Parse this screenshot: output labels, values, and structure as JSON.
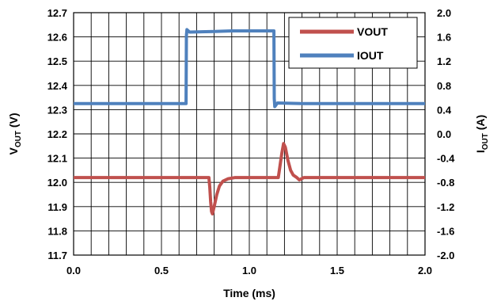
{
  "chart_data": {
    "type": "line",
    "xlabel": "Time (ms)",
    "ylabel_left": {
      "main": "V",
      "sub": "OUT",
      "unit": " (V)"
    },
    "ylabel_right": {
      "main": "I",
      "sub": "OUT",
      "unit": " (A)"
    },
    "xlim": [
      0.0,
      2.0
    ],
    "ylim_left": [
      11.7,
      12.7
    ],
    "ylim_right": [
      -2.0,
      2.0
    ],
    "x_ticks": [
      "0.0",
      "0.5",
      "1.0",
      "1.5",
      "2.0"
    ],
    "x_tick_values": [
      0.0,
      0.5,
      1.0,
      1.5,
      2.0
    ],
    "y_left_ticks": [
      "12.7",
      "12.6",
      "12.5",
      "12.4",
      "12.3",
      "12.2",
      "12.1",
      "12.0",
      "11.9",
      "11.8",
      "11.7"
    ],
    "y_left_tick_values": [
      12.7,
      12.6,
      12.5,
      12.4,
      12.3,
      12.2,
      12.1,
      12.0,
      11.9,
      11.8,
      11.7
    ],
    "y_right_ticks": [
      "2.0",
      "1.6",
      "1.2",
      "0.8",
      "0.4",
      "0.0",
      "-0.4",
      "-0.8",
      "-1.2",
      "-1.6",
      "-2.0"
    ],
    "y_right_tick_values": [
      2.0,
      1.6,
      1.2,
      0.8,
      0.4,
      0.0,
      -0.4,
      -0.8,
      -1.2,
      -1.6,
      -2.0
    ],
    "x_minor_step": 0.1,
    "grid": true,
    "legend_position": "top-right",
    "series": [
      {
        "name": "VOUT",
        "axis": "left",
        "color": "#c0504d",
        "points": [
          [
            0.0,
            12.02
          ],
          [
            0.77,
            12.02
          ],
          [
            0.775,
            11.98
          ],
          [
            0.78,
            11.92
          ],
          [
            0.785,
            11.88
          ],
          [
            0.79,
            11.87
          ],
          [
            0.8,
            11.9
          ],
          [
            0.815,
            11.95
          ],
          [
            0.83,
            11.985
          ],
          [
            0.85,
            12.005
          ],
          [
            0.88,
            12.015
          ],
          [
            0.92,
            12.02
          ],
          [
            1.165,
            12.02
          ],
          [
            1.175,
            12.07
          ],
          [
            1.185,
            12.12
          ],
          [
            1.195,
            12.16
          ],
          [
            1.205,
            12.145
          ],
          [
            1.22,
            12.09
          ],
          [
            1.235,
            12.05
          ],
          [
            1.25,
            12.03
          ],
          [
            1.27,
            12.02
          ],
          [
            1.285,
            12.01
          ],
          [
            1.31,
            12.02
          ],
          [
            2.0,
            12.02
          ]
        ]
      },
      {
        "name": "IOUT",
        "axis": "right",
        "color": "#4f81bd",
        "points": [
          [
            0.0,
            0.5
          ],
          [
            0.64,
            0.5
          ],
          [
            0.642,
            1.62
          ],
          [
            0.645,
            1.72
          ],
          [
            0.66,
            1.68
          ],
          [
            0.8,
            1.69
          ],
          [
            0.9,
            1.7
          ],
          [
            1.0,
            1.7
          ],
          [
            1.14,
            1.7
          ],
          [
            1.142,
            0.58
          ],
          [
            1.145,
            0.45
          ],
          [
            1.16,
            0.51
          ],
          [
            1.3,
            0.5
          ],
          [
            2.0,
            0.5
          ]
        ]
      }
    ]
  }
}
